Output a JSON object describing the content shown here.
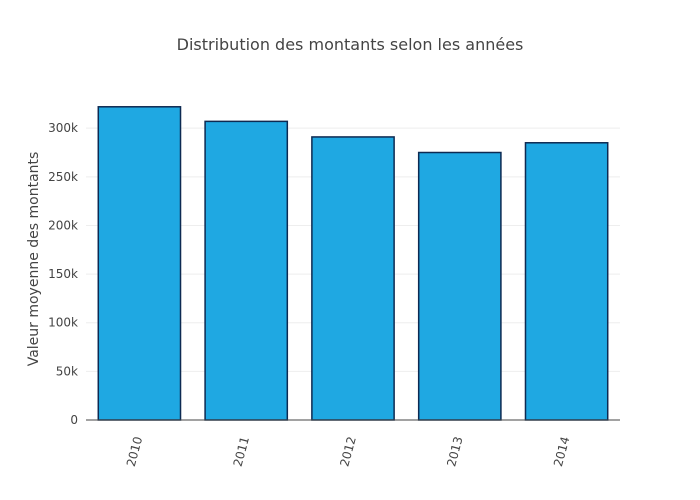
{
  "chart_data": {
    "type": "bar",
    "title": "Distribution des montants selon les années",
    "xlabel": "",
    "ylabel": "Valeur moyenne des montants",
    "categories": [
      "2010",
      "2011",
      "2012",
      "2013",
      "2014"
    ],
    "values": [
      322000,
      307000,
      291000,
      275000,
      285000
    ],
    "ylim": [
      0,
      330000
    ],
    "yticks": [
      0,
      50000,
      100000,
      150000,
      200000,
      250000,
      300000
    ],
    "ytick_labels": [
      "0",
      "50k",
      "100k",
      "150k",
      "200k",
      "250k",
      "300k"
    ],
    "grid": true,
    "legend": "none",
    "bar_color": "#1fa8e2",
    "bar_outline": "#0d2a52"
  }
}
